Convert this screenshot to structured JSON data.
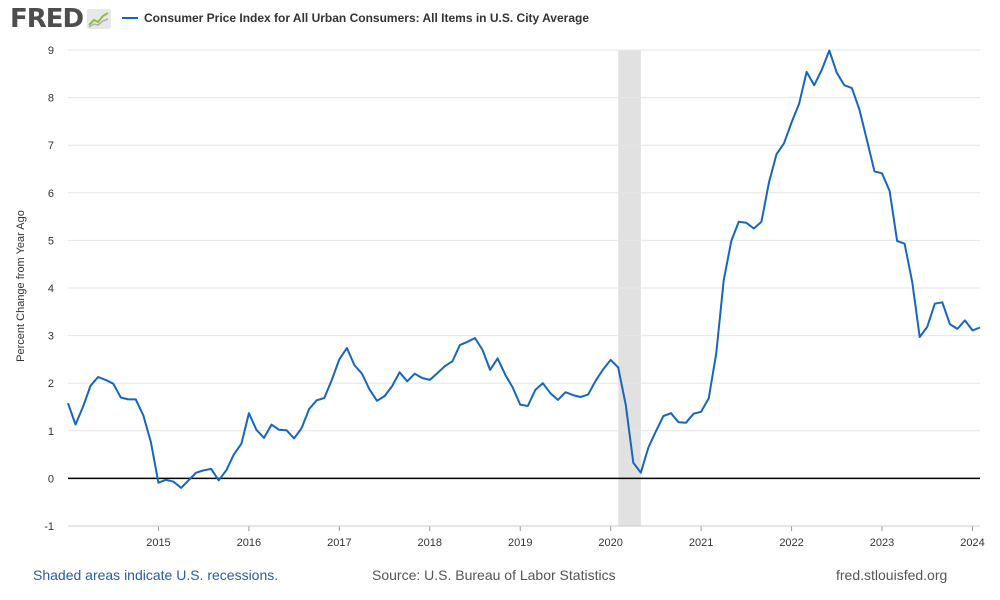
{
  "header": {
    "logo_text": "FRED",
    "legend_label": "Consumer Price Index for All Urban Consumers: All Items in U.S. City Average",
    "series_color": "#1666c0"
  },
  "footer": {
    "recession_note": "Shaded areas indicate U.S. recessions.",
    "source": "Source: U.S. Bureau of Labor Statistics",
    "site": "fred.stlouisfed.org"
  },
  "chart_data": {
    "type": "line",
    "title": "",
    "ylabel": "Percent Change from Year Ago",
    "xlabel": "",
    "ylim": [
      -1,
      9
    ],
    "xlim": [
      "2014-01",
      "2024-02"
    ],
    "yticks": [
      -1,
      0,
      1,
      2,
      3,
      4,
      5,
      6,
      7,
      8,
      9
    ],
    "xticks": [
      "2015",
      "2016",
      "2017",
      "2018",
      "2019",
      "2020",
      "2021",
      "2022",
      "2023",
      "2024"
    ],
    "grid": true,
    "zero_line": true,
    "recessions": [
      {
        "start": "2020-02",
        "end": "2020-04"
      }
    ],
    "series": [
      {
        "name": "Consumer Price Index for All Urban Consumers: All Items in U.S. City Average",
        "start": "2014-01",
        "frequency": "monthly",
        "values": [
          1.58,
          1.13,
          1.51,
          1.95,
          2.13,
          2.07,
          1.99,
          1.7,
          1.66,
          1.66,
          1.32,
          0.76,
          -0.09,
          -0.03,
          -0.07,
          -0.2,
          -0.04,
          0.12,
          0.17,
          0.2,
          -0.04,
          0.17,
          0.5,
          0.73,
          1.37,
          1.02,
          0.85,
          1.13,
          1.02,
          1.01,
          0.84,
          1.06,
          1.46,
          1.64,
          1.69,
          2.07,
          2.5,
          2.74,
          2.38,
          2.2,
          1.87,
          1.63,
          1.73,
          1.94,
          2.23,
          2.04,
          2.2,
          2.11,
          2.07,
          2.21,
          2.36,
          2.46,
          2.8,
          2.87,
          2.95,
          2.7,
          2.28,
          2.52,
          2.18,
          1.91,
          1.55,
          1.52,
          1.86,
          2.0,
          1.79,
          1.65,
          1.81,
          1.75,
          1.71,
          1.76,
          2.05,
          2.29,
          2.49,
          2.33,
          1.54,
          0.33,
          0.12,
          0.65,
          0.99,
          1.31,
          1.37,
          1.18,
          1.17,
          1.36,
          1.4,
          1.68,
          2.62,
          4.16,
          4.99,
          5.39,
          5.37,
          5.25,
          5.39,
          6.22,
          6.81,
          7.04,
          7.48,
          7.87,
          8.54,
          8.26,
          8.58,
          8.99,
          8.52,
          8.26,
          8.2,
          7.75,
          7.11,
          6.45,
          6.41,
          6.04,
          4.99,
          4.93,
          4.13,
          2.97,
          3.18,
          3.67,
          3.7,
          3.24,
          3.14,
          3.32,
          3.11,
          3.17
        ]
      }
    ]
  }
}
